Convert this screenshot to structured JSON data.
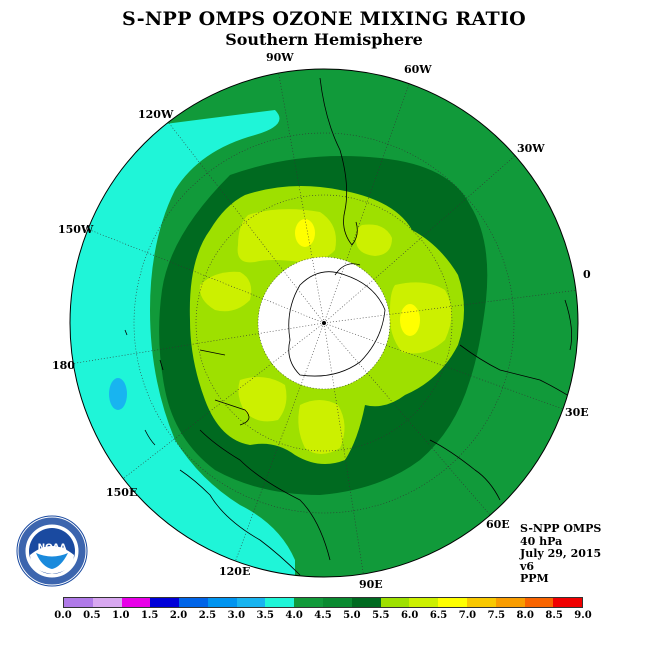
{
  "header": {
    "title": "S-NPP OMPS OZONE MIXING RATIO",
    "subtitle": "Southern Hemisphere"
  },
  "map": {
    "projection": "south-polar-stereographic",
    "longitude_labels": [
      "90W",
      "60W",
      "30W",
      "0",
      "30E",
      "60E",
      "90E",
      "120E",
      "150E",
      "180",
      "150W",
      "120W"
    ],
    "colors": {
      "ocean_low": "#1ff5d8",
      "mid_green": "#119a3a",
      "dark_green": "#006a20",
      "yellow_green": "#9ee000",
      "lime": "#ccf000",
      "yellow": "#ffff00",
      "pole_fill": "#ffffff"
    }
  },
  "info": {
    "lines": [
      "S-NPP OMPS",
      "40 hPa",
      "July 29, 2015",
      "v6",
      "PPM"
    ]
  },
  "colorbar": {
    "tick_labels": [
      "0.0",
      "0.5",
      "1.0",
      "1.5",
      "2.0",
      "2.5",
      "3.0",
      "3.5",
      "4.0",
      "4.5",
      "5.0",
      "5.5",
      "6.0",
      "6.5",
      "7.0",
      "7.5",
      "8.0",
      "8.5",
      "9.0"
    ],
    "colors": [
      "#b07ae8",
      "#d8a8f0",
      "#e800e8",
      "#0000d8",
      "#0064e8",
      "#0094f0",
      "#18b4f0",
      "#1ff5d8",
      "#119a3a",
      "#0a8a30",
      "#006a20",
      "#9ee000",
      "#ccf000",
      "#ffff00",
      "#f8c800",
      "#f89c00",
      "#f86400",
      "#f00000",
      "#8b5a2b"
    ]
  },
  "logo": {
    "name": "NOAA",
    "ring_text": "NATIONAL OCEANIC AND ATMOSPHERIC ADMINISTRATION · U.S. DEPARTMENT OF COMMERCE"
  }
}
